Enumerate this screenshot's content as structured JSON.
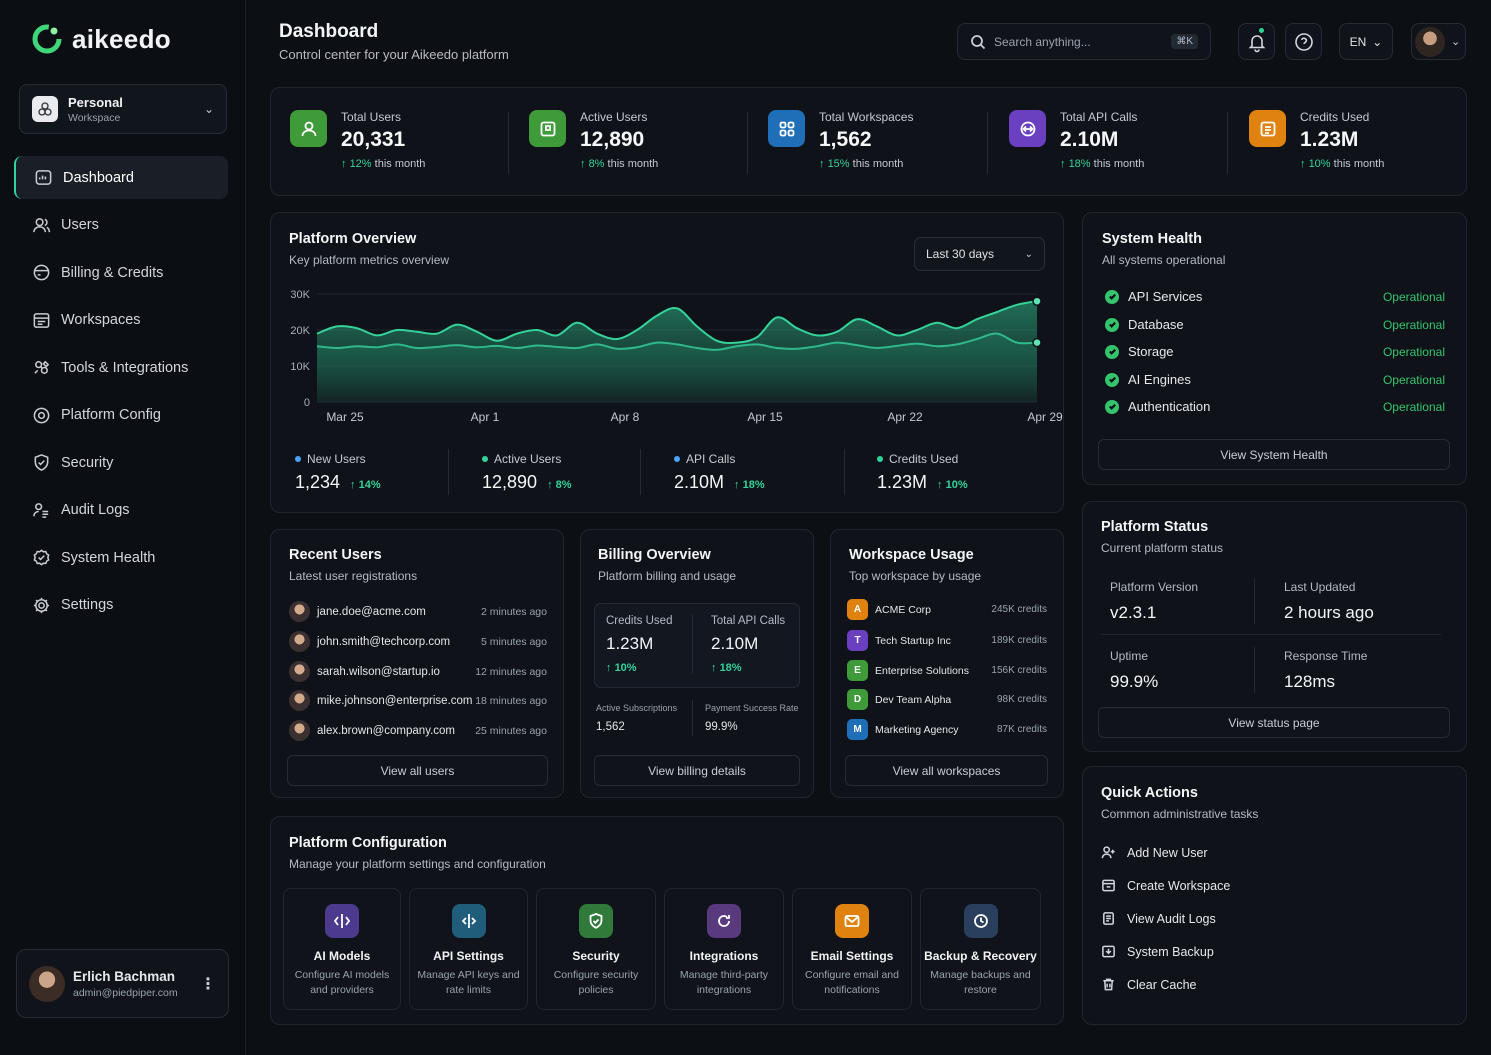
{
  "brand": {
    "name": "aikeedo"
  },
  "workspace": {
    "name": "Personal",
    "type": "Workspace"
  },
  "nav": [
    {
      "label": "Dashboard",
      "icon": "dashboard-icon"
    },
    {
      "label": "Users",
      "icon": "users-icon"
    },
    {
      "label": "Billing & Credits",
      "icon": "billing-icon"
    },
    {
      "label": "Workspaces",
      "icon": "workspaces-icon"
    },
    {
      "label": "Tools & Integrations",
      "icon": "tools-icon"
    },
    {
      "label": "Platform Config",
      "icon": "config-icon"
    },
    {
      "label": "Security",
      "icon": "shield-icon"
    },
    {
      "label": "Audit Logs",
      "icon": "audit-icon"
    },
    {
      "label": "System Health",
      "icon": "health-icon"
    },
    {
      "label": "Settings",
      "icon": "gear-icon"
    }
  ],
  "profile": {
    "name": "Erlich Bachman",
    "email": "admin@piedpiper.com"
  },
  "header": {
    "title": "Dashboard",
    "subtitle": "Control center for your Aikeedo platform"
  },
  "search": {
    "placeholder": "Search anything...",
    "shortcut": "⌘K"
  },
  "lang": "EN",
  "stats": [
    {
      "label": "Total Users",
      "value": "20,331",
      "change": "12%",
      "suffix": "this month",
      "color": "#3f9a3a",
      "icon": "user-icon"
    },
    {
      "label": "Active Users",
      "value": "12,890",
      "change": "8%",
      "suffix": "this month",
      "color": "#3f9a3a",
      "icon": "active-user-icon"
    },
    {
      "label": "Total Workspaces",
      "value": "1,562",
      "change": "15%",
      "suffix": "this month",
      "color": "#1f6fb8",
      "icon": "grid-icon"
    },
    {
      "label": "Total API Calls",
      "value": "2.10M",
      "change": "18%",
      "suffix": "this month",
      "color": "#6a3fc0",
      "icon": "api-icon"
    },
    {
      "label": "Credits Used",
      "value": "1.23M",
      "change": "10%",
      "suffix": "this month",
      "color": "#e0820f",
      "icon": "credits-icon"
    }
  ],
  "overview": {
    "title": "Platform Overview",
    "subtitle": "Key platform metrics overview",
    "range": "Last 30 days",
    "legend": [
      {
        "label": "New Users",
        "value": "1,234",
        "change": "14%",
        "color": "#4aa3ff"
      },
      {
        "label": "Active Users",
        "value": "12,890",
        "change": "8%",
        "color": "#34d399"
      },
      {
        "label": "API Calls",
        "value": "2.10M",
        "change": "18%",
        "color": "#4aa3ff"
      },
      {
        "label": "Credits Used",
        "value": "1.23M",
        "change": "10%",
        "color": "#34d399"
      }
    ]
  },
  "chart_data": {
    "type": "area",
    "x": [
      "Mar 25",
      "Mar 26",
      "Mar 27",
      "Mar 28",
      "Mar 29",
      "Mar 30",
      "Mar 31",
      "Apr 1",
      "Apr 2",
      "Apr 3",
      "Apr 4",
      "Apr 5",
      "Apr 6",
      "Apr 7",
      "Apr 8",
      "Apr 9",
      "Apr 10",
      "Apr 11",
      "Apr 12",
      "Apr 13",
      "Apr 14",
      "Apr 15",
      "Apr 16",
      "Apr 17",
      "Apr 18",
      "Apr 19",
      "Apr 20",
      "Apr 21",
      "Apr 22",
      "Apr 23",
      "Apr 24",
      "Apr 25",
      "Apr 26",
      "Apr 27",
      "Apr 28",
      "Apr 29",
      "Apr 30"
    ],
    "xticks": [
      "Mar 25",
      "Apr 1",
      "Apr 8",
      "Apr 15",
      "Apr 22",
      "Apr 29"
    ],
    "yticks": [
      "0",
      "10K",
      "20K",
      "30K"
    ],
    "ylim": [
      0,
      30000
    ],
    "series": [
      {
        "values": [
          19000,
          21000,
          20500,
          18500,
          20000,
          19500,
          19000,
          21500,
          19500,
          17000,
          19000,
          20000,
          18500,
          22000,
          19000,
          17500,
          20000,
          24000,
          26000,
          21000,
          17000,
          16500,
          18000,
          23500,
          20500,
          18500,
          19500,
          23000,
          21000,
          18500,
          20000,
          22000,
          20500,
          23000,
          25000,
          27000,
          28000
        ],
        "color": "#34d399"
      },
      {
        "values": [
          15500,
          15000,
          15500,
          15200,
          16000,
          15000,
          15300,
          15800,
          15200,
          15600,
          15000,
          15700,
          15300,
          15000,
          16000,
          14800,
          15200,
          16500,
          16000,
          15000,
          14500,
          15500,
          16000,
          15000,
          14800,
          15500,
          16500,
          15800,
          15000,
          15600,
          16200,
          15500,
          16000,
          17500,
          19000,
          16500,
          16500
        ],
        "color": "#2fb98a"
      }
    ]
  },
  "health": {
    "title": "System Health",
    "subtitle": "All systems operational",
    "items": [
      {
        "name": "API Services",
        "status": "Operational"
      },
      {
        "name": "Database",
        "status": "Operational"
      },
      {
        "name": "Storage",
        "status": "Operational"
      },
      {
        "name": "AI Engines",
        "status": "Operational"
      },
      {
        "name": "Authentication",
        "status": "Operational"
      }
    ],
    "button": "View System Health"
  },
  "recent_users": {
    "title": "Recent Users",
    "subtitle": "Latest user registrations",
    "items": [
      {
        "email": "jane.doe@acme.com",
        "time": "2 minutes ago"
      },
      {
        "email": "john.smith@techcorp.com",
        "time": "5 minutes ago"
      },
      {
        "email": "sarah.wilson@startup.io",
        "time": "12 minutes ago"
      },
      {
        "email": "mike.johnson@enterprise.com",
        "time": "18 minutes ago"
      },
      {
        "email": "alex.brown@company.com",
        "time": "25 minutes ago"
      }
    ],
    "button": "View all users"
  },
  "billing": {
    "title": "Billing Overview",
    "subtitle": "Platform billing and usage",
    "credits_label": "Credits Used",
    "credits_value": "1.23M",
    "credits_change": "10%",
    "api_label": "Total API Calls",
    "api_value": "2.10M",
    "api_change": "18%",
    "subs_label": "Active Subscriptions",
    "subs_value": "1,562",
    "pay_label": "Payment Success Rate",
    "pay_value": "99.9%",
    "button": "View billing details"
  },
  "workspace_usage": {
    "title": "Workspace Usage",
    "subtitle": "Top workspace by usage",
    "items": [
      {
        "name": "ACME Corp",
        "credits": "245K credits",
        "color": "#e0820f"
      },
      {
        "name": "Tech Startup Inc",
        "credits": "189K credits",
        "color": "#6a3fc0"
      },
      {
        "name": "Enterprise Solutions",
        "credits": "156K credits",
        "color": "#3f9a3a"
      },
      {
        "name": "Dev Team Alpha",
        "credits": "98K credits",
        "color": "#3f9a3a"
      },
      {
        "name": "Marketing Agency",
        "credits": "87K credits",
        "color": "#1f6fb8"
      }
    ],
    "button": "View all workspaces"
  },
  "status": {
    "title": "Platform Status",
    "subtitle": "Current platform status",
    "version_label": "Platform Version",
    "version_value": "v2.3.1",
    "updated_label": "Last Updated",
    "updated_value": "2 hours ago",
    "uptime_label": "Uptime",
    "uptime_value": "99.9%",
    "response_label": "Response Time",
    "response_value": "128ms",
    "button": "View status page"
  },
  "config": {
    "title": "Platform Configuration",
    "subtitle": "Manage your platform settings and configuration",
    "items": [
      {
        "title": "AI Models",
        "desc": "Configure AI models and providers",
        "color": "#4b3a8e",
        "icon": "ai-icon"
      },
      {
        "title": "API Settings",
        "desc": "Manage API keys and rate limits",
        "color": "#1f5d7a",
        "icon": "api-settings-icon"
      },
      {
        "title": "Security",
        "desc": "Configure security policies",
        "color": "#2f7a3a",
        "icon": "shield-icon"
      },
      {
        "title": "Integrations",
        "desc": "Manage third-party integrations",
        "color": "#5a3a7e",
        "icon": "integrations-icon"
      },
      {
        "title": "Email Settings",
        "desc": "Configure email and notifications",
        "color": "#e0820f",
        "icon": "mail-icon"
      },
      {
        "title": "Backup & Recovery",
        "desc": "Manage backups and restore",
        "color": "#2a3f5e",
        "icon": "backup-icon"
      }
    ]
  },
  "quick": {
    "title": "Quick Actions",
    "subtitle": "Common administrative tasks",
    "items": [
      {
        "label": "Add New User",
        "icon": "add-user-icon"
      },
      {
        "label": "Create Workspace",
        "icon": "workspace-icon"
      },
      {
        "label": "View Audit Logs",
        "icon": "audit-icon"
      },
      {
        "label": "System Backup",
        "icon": "backup-icon"
      },
      {
        "label": "Clear Cache",
        "icon": "trash-icon"
      }
    ]
  }
}
